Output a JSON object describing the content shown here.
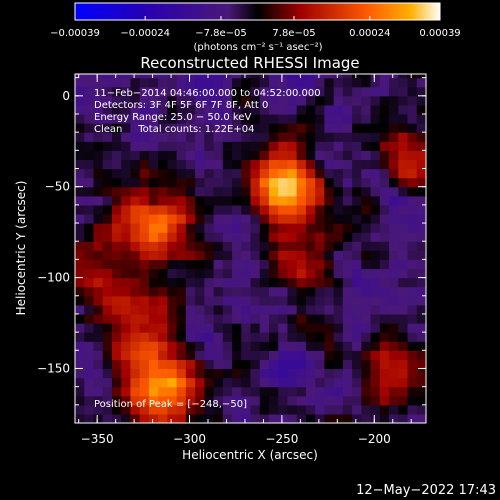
{
  "chart_data": {
    "type": "heatmap",
    "title": "Reconstructed RHESSI Image",
    "xlabel": "Heliocentric X (arcsec)",
    "ylabel": "Heliocentric Y (arcsec)",
    "xlim": [
      -362,
      -172
    ],
    "ylim": [
      -180,
      12
    ],
    "x_ticks": [
      -350,
      -300,
      -250,
      -200
    ],
    "x_tick_labels": [
      "−350",
      "−300",
      "−250",
      "−200"
    ],
    "y_ticks": [
      0,
      -50,
      -100,
      -150
    ],
    "y_tick_labels": [
      "0",
      "−50",
      "−100",
      "−150"
    ],
    "colorbar": {
      "min": -0.00039,
      "max": 0.00039,
      "ticks": [
        -0.00039,
        -0.00024,
        -7.8e-05,
        7.8e-05,
        0.00024,
        0.00039
      ],
      "tick_labels": [
        "−0.00039",
        "−0.00024",
        "−7.8e−05",
        "7.8e−05",
        "0.00024",
        "0.00039"
      ],
      "unit_label": "(photons cm⁻² s⁻¹ asec⁻²)"
    },
    "annotations": [
      "11−Feb−2014 04:46:00.000 to 04:52:00.000",
      "Detectors: 3F 4F 5F 6F 7F 8F, Att 0",
      "Energy Range: 25.0 − 50.0 keV",
      "Clean     Total counts: 1.22E+04"
    ],
    "peak_label": "Position of Peak = [−248,−50]",
    "peak": [
      -248,
      -50
    ],
    "sources": [
      {
        "x": -248,
        "y": -50,
        "intensity": 0.00039
      },
      {
        "x": -322,
        "y": -70,
        "intensity": 0.00033
      },
      {
        "x": -315,
        "y": -162,
        "intensity": 0.00036
      },
      {
        "x": -328,
        "y": -125,
        "intensity": 0.00024
      },
      {
        "x": -242,
        "y": -88,
        "intensity": 0.00018
      },
      {
        "x": -182,
        "y": -32,
        "intensity": 0.00016
      },
      {
        "x": -185,
        "y": -152,
        "intensity": 0.00014
      },
      {
        "x": -358,
        "y": -90,
        "intensity": 0.00012
      }
    ]
  },
  "footer": {
    "timestamp": "12−May−2022 17:43"
  }
}
